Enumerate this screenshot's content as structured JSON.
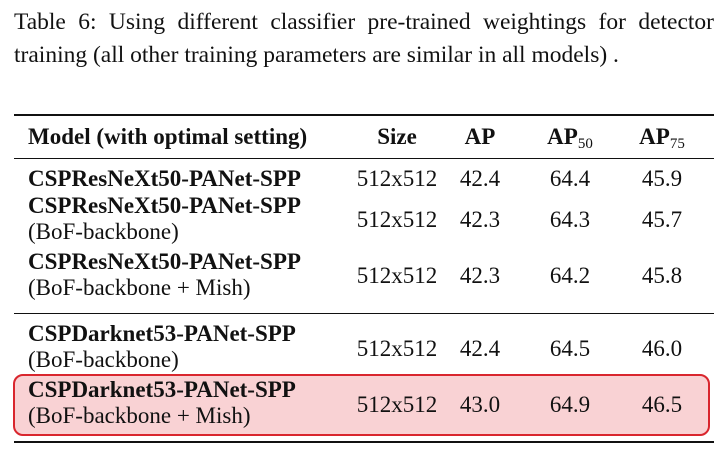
{
  "caption": "Table 6: Using different classifier pre-trained weightings for detector training (all other training parameters are similar in all models) .",
  "header": {
    "model": "Model (with optimal setting)",
    "size": "Size",
    "ap": "AP",
    "ap50_base": "AP",
    "ap50_sub": "50",
    "ap75_base": "AP",
    "ap75_sub": "75"
  },
  "rows": [
    {
      "name": "CSPResNeXt50-PANet-SPP",
      "sub": "",
      "size": "512x512",
      "ap": "42.4",
      "ap50": "64.4",
      "ap75": "45.9"
    },
    {
      "name": "CSPResNeXt50-PANet-SPP",
      "sub": "(BoF-backbone)",
      "size": "512x512",
      "ap": "42.3",
      "ap50": "64.3",
      "ap75": "45.7"
    },
    {
      "name": "CSPResNeXt50-PANet-SPP",
      "sub": "(BoF-backbone + Mish)",
      "size": "512x512",
      "ap": "42.3",
      "ap50": "64.2",
      "ap75": "45.8"
    },
    {
      "name": "CSPDarknet53-PANet-SPP",
      "sub": "(BoF-backbone)",
      "size": "512x512",
      "ap": "42.4",
      "ap50": "64.5",
      "ap75": "46.0"
    },
    {
      "name": "CSPDarknet53-PANet-SPP",
      "sub": "(BoF-backbone + Mish)",
      "size": "512x512",
      "ap": "43.0",
      "ap50": "64.9",
      "ap75": "46.5"
    }
  ],
  "highlight_color": "#f9d2d4",
  "highlight_border": "#d9262e"
}
